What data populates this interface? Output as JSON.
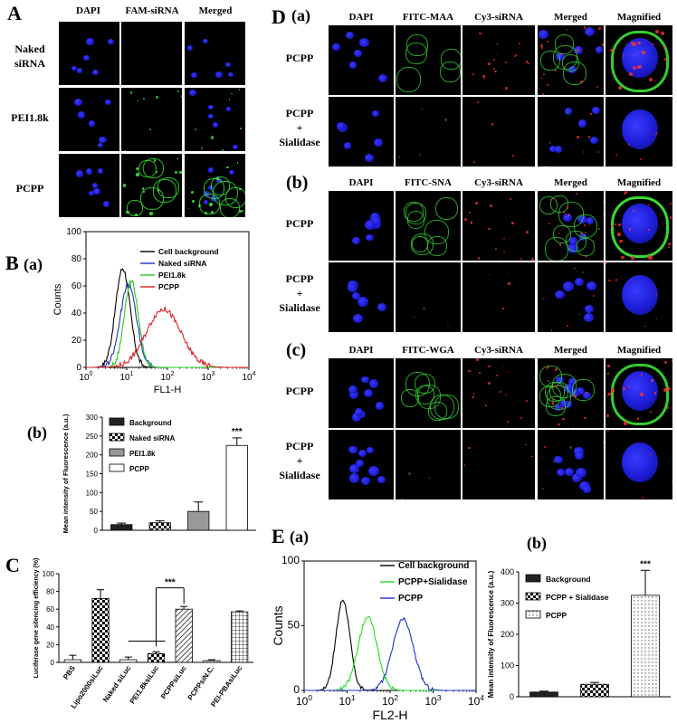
{
  "panelA": {
    "letter": "A",
    "headers": [
      "DAPI",
      "FAM-siRNA",
      "Merged"
    ],
    "rows": [
      {
        "label": "Naked\nsiRNA"
      },
      {
        "label": "PEI1.8k"
      },
      {
        "label": "PCPP"
      }
    ]
  },
  "panelB": {
    "letter": "B",
    "sub_a": "(a)",
    "sub_b": "(b)"
  },
  "panelC": {
    "letter": "C"
  },
  "panelD": {
    "letter": "D",
    "sections": [
      {
        "sub": "(a)",
        "headers": [
          "DAPI",
          "FITC-MAA",
          "Cy3-siRNA",
          "Merged",
          "Magnified"
        ],
        "rows": [
          "PCPP",
          "PCPP\n+\nSialidase"
        ]
      },
      {
        "sub": "(b)",
        "headers": [
          "DAPI",
          "FITC-SNA",
          "Cy3-siRNA",
          "Merged",
          "Magnified"
        ],
        "rows": [
          "PCPP",
          "PCPP\n+\nSialidase"
        ]
      },
      {
        "sub": "(c)",
        "headers": [
          "DAPI",
          "FITC-WGA",
          "Cy3-siRNA",
          "Merged",
          "Magnified"
        ],
        "rows": [
          "PCPP",
          "PCPP\n+\nSialidase"
        ]
      }
    ]
  },
  "panelE": {
    "letter": "E",
    "sub_a": "(a)",
    "sub_b": "(b)"
  },
  "chart_data": [
    {
      "id": "B_a",
      "type": "line",
      "xlabel": "FL1-H",
      "ylabel": "Counts",
      "xscale": "log",
      "xlim": [
        1,
        10000
      ],
      "ylim": [
        0,
        100
      ],
      "xticks": [
        "10^0",
        "10^1",
        "10^2",
        "10^3",
        "10^4"
      ],
      "yticks": [
        0,
        20,
        40,
        60,
        80,
        100
      ],
      "legend": [
        "Cell background",
        "Naked siRNA",
        "PEI1.8k",
        "PCPP"
      ],
      "legend_position": "top-right",
      "series": [
        {
          "name": "Cell background",
          "color": "#000000",
          "peak_x": 8,
          "peak_y": 73
        },
        {
          "name": "Naked siRNA",
          "color": "#1f2fbf",
          "peak_x": 11,
          "peak_y": 61
        },
        {
          "name": "PEI1.8k",
          "color": "#22cc22",
          "peak_x": 13,
          "peak_y": 64
        },
        {
          "name": "PCPP",
          "color": "#dd2222",
          "peak_x": 80,
          "peak_y": 43
        }
      ]
    },
    {
      "id": "B_b",
      "type": "bar",
      "ylabel": "Mean intensity of Fluorescence (a.u.)",
      "ylim": [
        0,
        300
      ],
      "yticks": [
        0,
        50,
        100,
        150,
        200,
        250,
        300
      ],
      "categories": [
        "Background",
        "Naked siRNA",
        "PEI1.8k",
        "PCPP"
      ],
      "values": [
        15,
        20,
        50,
        225
      ],
      "errors": [
        4,
        5,
        25,
        20
      ],
      "significance": [
        "",
        "",
        "",
        "***"
      ],
      "legend": [
        "Background",
        "Naked siRNA",
        "PEI1.8k",
        "PCPP"
      ]
    },
    {
      "id": "C",
      "type": "bar",
      "ylabel": "Luciferase gene silencing efficiency (%)",
      "ylim": [
        0,
        100
      ],
      "yticks": [
        0,
        20,
        40,
        60,
        80,
        100
      ],
      "categories": [
        "PBS",
        "Lipo2000siLuc",
        "Naked siLuc",
        "PEI1.8ksiLuc",
        "PCPPsiLuc",
        "PCPPsiN.C.",
        "PEI-PBAsiLuc"
      ],
      "values": [
        3,
        72,
        3,
        10,
        60,
        2,
        57
      ],
      "errors": [
        5,
        10,
        3,
        2,
        3,
        1,
        1
      ],
      "significance": "***"
    },
    {
      "id": "E_a",
      "type": "line",
      "xlabel": "FL2-H",
      "ylabel": "Counts",
      "xscale": "log",
      "xlim": [
        1,
        10000
      ],
      "ylim": [
        0,
        100
      ],
      "xticks": [
        "10^0",
        "10^1",
        "10^2",
        "10^3",
        "10^4"
      ],
      "yticks": [
        0,
        50,
        100
      ],
      "legend": [
        "Cell background",
        "PCPP+Sialidase",
        "PCPP"
      ],
      "legend_position": "top-right",
      "series": [
        {
          "name": "Cell background",
          "color": "#000000",
          "peak_x": 8,
          "peak_y": 70
        },
        {
          "name": "PCPP+Sialidase",
          "color": "#22dd22",
          "peak_x": 30,
          "peak_y": 57
        },
        {
          "name": "PCPP",
          "color": "#1f2fcf",
          "peak_x": 200,
          "peak_y": 55
        }
      ]
    },
    {
      "id": "E_b",
      "type": "bar",
      "ylabel": "Mean intensity of Fluorescence (a.u.)",
      "ylim": [
        0,
        400
      ],
      "yticks": [
        0,
        100,
        200,
        300,
        400
      ],
      "categories": [
        "Background",
        "PCPP + Sialidase",
        "PCPP"
      ],
      "values": [
        15,
        40,
        325
      ],
      "errors": [
        3,
        6,
        80
      ],
      "significance": [
        "",
        "",
        "***"
      ],
      "legend": [
        "Background",
        "PCPP + Sialidase",
        "PCPP"
      ]
    }
  ]
}
